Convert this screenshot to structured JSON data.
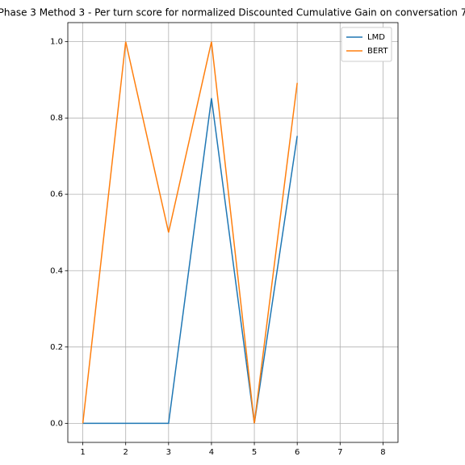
{
  "chart_data": {
    "type": "line",
    "title": "Phase 3 Method 3 - Per turn score for normalized Discounted Cumulative Gain on conversation 7",
    "x": [
      1,
      2,
      3,
      4,
      5,
      6
    ],
    "series": [
      {
        "name": "LMD",
        "color": "#1f77b4",
        "values": [
          0,
          0,
          0,
          0.852,
          0,
          0.753
        ]
      },
      {
        "name": "BERT",
        "color": "#ff7f0e",
        "values": [
          0,
          1.0,
          0.5,
          1.0,
          0,
          0.892
        ]
      }
    ],
    "xlim": [
      0.65,
      8.35
    ],
    "xticks": [
      1,
      2,
      3,
      4,
      5,
      6,
      7,
      8
    ],
    "ylim": [
      -0.05,
      1.05
    ],
    "yticks": [
      {
        "value": 0,
        "label": "0.0"
      },
      {
        "value": 0.2,
        "label": "0.2"
      },
      {
        "value": 0.4,
        "label": "0.4"
      },
      {
        "value": 0.6,
        "label": "0.6"
      },
      {
        "value": 0.8,
        "label": "0.8"
      },
      {
        "value": 1.0,
        "label": "1.0"
      }
    ],
    "grid": true,
    "legend": "upper-right"
  }
}
